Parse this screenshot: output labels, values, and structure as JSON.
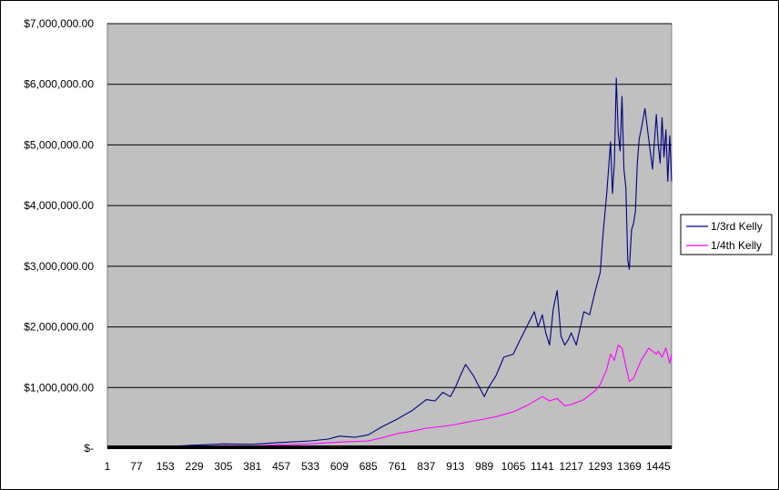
{
  "chart_data": {
    "type": "line",
    "title": "",
    "xlabel": "",
    "ylabel": "",
    "ylim": [
      0,
      7000000
    ],
    "yticks": [
      0,
      1000000,
      2000000,
      3000000,
      4000000,
      5000000,
      6000000,
      7000000
    ],
    "ytick_labels": [
      "$-",
      "$1,000,000.00",
      "$2,000,000.00",
      "$3,000,000.00",
      "$4,000,000.00",
      "$5,000,000.00",
      "$6,000,000.00",
      "$7,000,000.00"
    ],
    "xlim": [
      1,
      1480
    ],
    "xticks": [
      1,
      77,
      153,
      229,
      305,
      381,
      457,
      533,
      609,
      685,
      761,
      837,
      913,
      989,
      1065,
      1141,
      1217,
      1293,
      1369,
      1445
    ],
    "xtick_labels": [
      "1",
      "77",
      "153",
      "229",
      "305",
      "381",
      "457",
      "533",
      "609",
      "685",
      "761",
      "837",
      "913",
      "989",
      "1065",
      "1141",
      "1217",
      "1293",
      "1369",
      "1445"
    ],
    "grid": true,
    "legend_position": "right",
    "plot_bg": "#c0c0c0",
    "series": [
      {
        "name": "1/3rd Kelly",
        "color": "#000080",
        "x": [
          1,
          77,
          153,
          229,
          305,
          381,
          457,
          533,
          580,
          609,
          650,
          685,
          720,
          761,
          780,
          800,
          837,
          860,
          880,
          900,
          913,
          930,
          940,
          960,
          989,
          1000,
          1020,
          1040,
          1065,
          1080,
          1100,
          1120,
          1130,
          1141,
          1150,
          1160,
          1170,
          1180,
          1190,
          1200,
          1210,
          1217,
          1230,
          1250,
          1265,
          1280,
          1293,
          1300,
          1310,
          1320,
          1325,
          1330,
          1335,
          1340,
          1345,
          1350,
          1355,
          1360,
          1365,
          1369,
          1375,
          1380,
          1385,
          1390,
          1395,
          1400,
          1410,
          1420,
          1430,
          1440,
          1445,
          1450,
          1455,
          1460,
          1465,
          1470,
          1475,
          1480
        ],
        "values": [
          5000,
          12000,
          25000,
          50000,
          70000,
          65000,
          95000,
          120000,
          150000,
          200000,
          180000,
          220000,
          350000,
          480000,
          550000,
          620000,
          800000,
          780000,
          920000,
          850000,
          1000000,
          1250000,
          1380000,
          1200000,
          850000,
          1000000,
          1200000,
          1500000,
          1550000,
          1750000,
          2000000,
          2250000,
          2000000,
          2200000,
          1900000,
          1700000,
          2300000,
          2600000,
          1850000,
          1700000,
          1800000,
          1900000,
          1700000,
          2250000,
          2200000,
          2600000,
          2900000,
          3500000,
          4200000,
          5050000,
          4200000,
          4700000,
          6100000,
          5200000,
          4900000,
          5800000,
          4600000,
          4300000,
          3100000,
          2950000,
          3600000,
          3700000,
          3900000,
          4700000,
          5100000,
          5250000,
          5600000,
          5100000,
          4600000,
          5500000,
          5000000,
          4700000,
          5450000,
          4800000,
          5250000,
          4400000,
          5150000,
          4400000
        ]
      },
      {
        "name": "1/4th Kelly",
        "color": "#ff00ff",
        "x": [
          1,
          77,
          153,
          229,
          305,
          381,
          457,
          533,
          609,
          685,
          720,
          761,
          800,
          837,
          880,
          913,
          960,
          989,
          1020,
          1065,
          1100,
          1141,
          1160,
          1180,
          1200,
          1217,
          1250,
          1280,
          1293,
          1310,
          1320,
          1330,
          1340,
          1350,
          1360,
          1369,
          1380,
          1400,
          1420,
          1430,
          1440,
          1445,
          1455,
          1465,
          1475,
          1480
        ],
        "values": [
          5000,
          10000,
          18000,
          30000,
          40000,
          38000,
          55000,
          70000,
          100000,
          120000,
          170000,
          240000,
          280000,
          330000,
          360000,
          390000,
          450000,
          480000,
          520000,
          600000,
          700000,
          850000,
          780000,
          820000,
          700000,
          720000,
          800000,
          950000,
          1050000,
          1300000,
          1550000,
          1450000,
          1700000,
          1650000,
          1350000,
          1100000,
          1150000,
          1450000,
          1650000,
          1600000,
          1550000,
          1600000,
          1500000,
          1650000,
          1400000,
          1550000
        ]
      }
    ]
  }
}
